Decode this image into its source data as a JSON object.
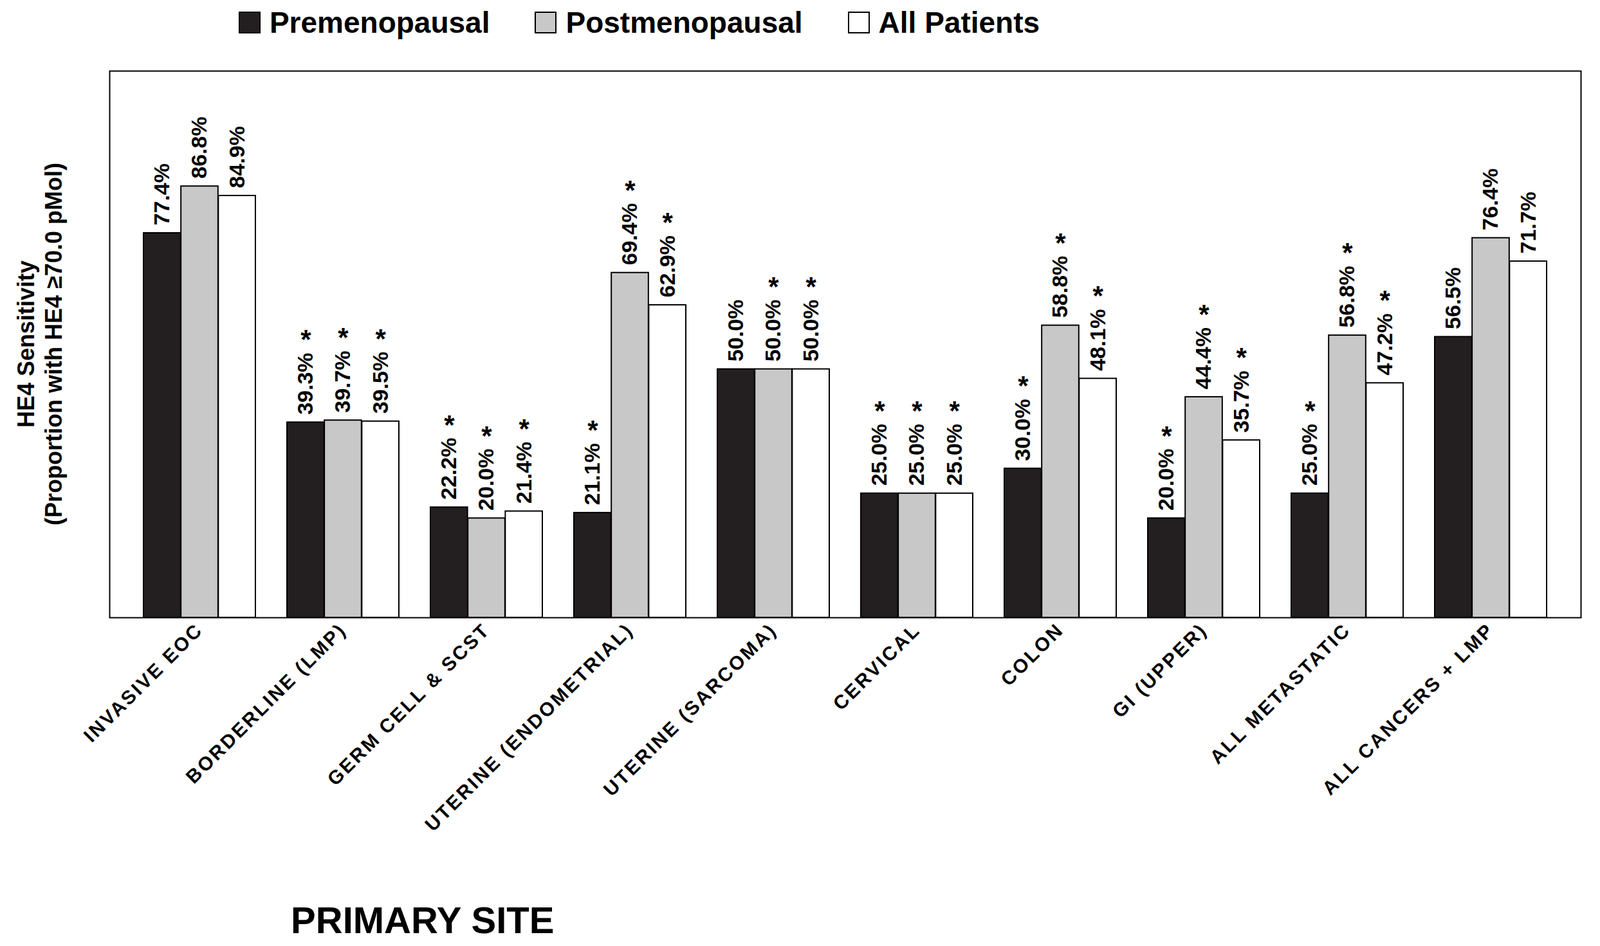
{
  "chart_data": {
    "type": "bar",
    "y_label": "HE4 Sensitivity\n(Proportion with HE4 ≥70.0 pMol)",
    "x_label": "PRIMARY SITE",
    "categories": [
      "INVASIVE EOC",
      "BORDERLINE (LMP)",
      "GERM CELL & SCST",
      "UTERINE (ENDOMETRIAL)",
      "UTERINE (SARCOMA)",
      "CERVICAL",
      "COLON",
      "GI (UPPER)",
      "ALL METASTATIC",
      "ALL CANCERS + LMP"
    ],
    "series": [
      {
        "name": "Premenopausal",
        "color": "#231f20",
        "values": [
          77.4,
          39.3,
          22.2,
          21.1,
          50.0,
          25.0,
          30.0,
          20.0,
          25.0,
          56.5
        ],
        "value_labels": [
          "77.4%",
          "39.3%",
          "22.2%",
          "21.1%",
          "50.0%",
          "25.0%",
          "30.0%",
          "20.0%",
          "25.0%",
          "56.5%"
        ],
        "significance": [
          null,
          "*",
          "*",
          "*",
          null,
          "*",
          "*",
          "*",
          "*",
          null
        ]
      },
      {
        "name": "Postmenopausal",
        "color": "#c8c8c8",
        "values": [
          86.8,
          39.7,
          20.0,
          69.4,
          50.0,
          25.0,
          58.8,
          44.4,
          56.8,
          76.4
        ],
        "value_labels": [
          "86.8%",
          "39.7%",
          "20.0%",
          "69.4%",
          "50.0%",
          "25.0%",
          "58.8%",
          "44.4%",
          "56.8%",
          "76.4%"
        ],
        "significance": [
          null,
          "*",
          "*",
          "*",
          "*",
          "*",
          "*",
          "*",
          "*",
          null
        ]
      },
      {
        "name": "All Patients",
        "color": "#ffffff",
        "values": [
          84.9,
          39.5,
          21.4,
          62.9,
          50.0,
          25.0,
          48.1,
          35.7,
          47.2,
          71.7
        ],
        "value_labels": [
          "84.9%",
          "39.5%",
          "21.4%",
          "62.9%",
          "50.0%",
          "25.0%",
          "48.1%",
          "35.7%",
          "47.2%",
          "71.7%"
        ],
        "significance": [
          null,
          "*",
          "*",
          "*",
          "*",
          "*",
          "*",
          "*",
          "*",
          null
        ]
      }
    ],
    "ylim": [
      0,
      110
    ],
    "yticks": [],
    "tick_labels": "x",
    "data_labels": true,
    "legend": "top",
    "grid": false
  }
}
